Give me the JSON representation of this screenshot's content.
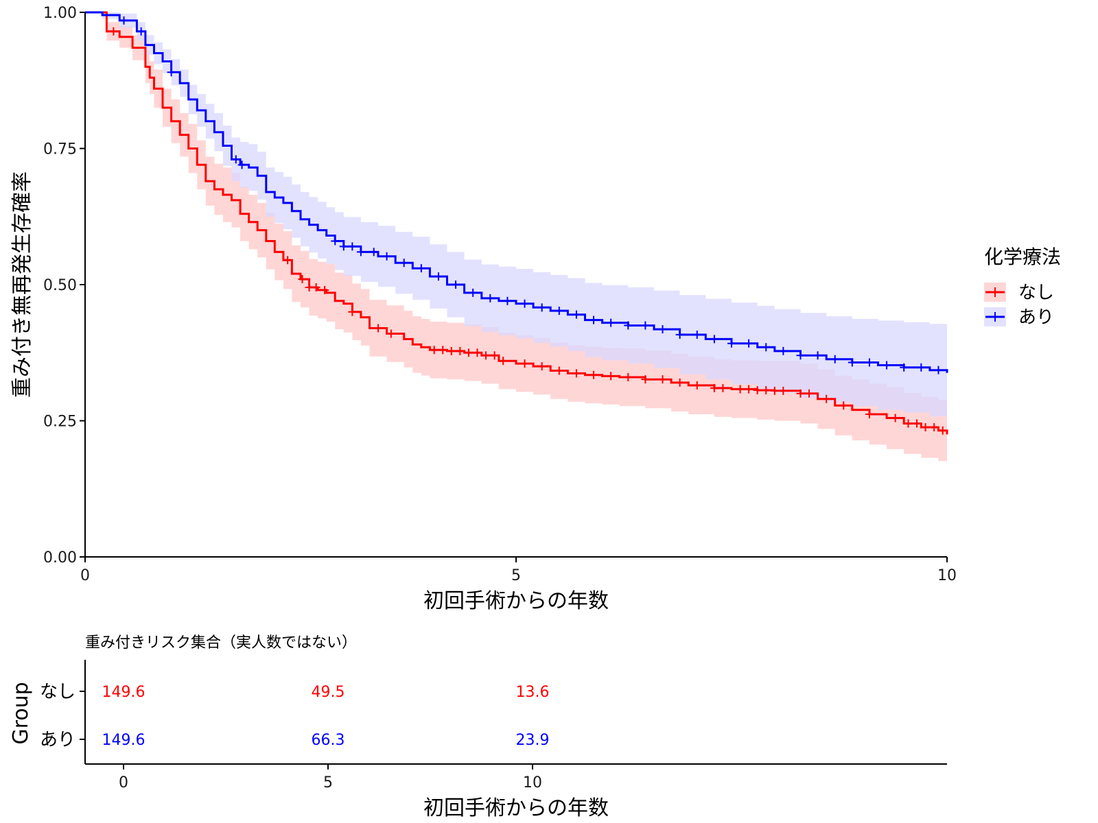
{
  "chart_data": [
    {
      "type": "line",
      "subtype": "kaplan-meier step curves with confidence bands and censor marks",
      "xlabel": "初回手術からの年数",
      "ylabel": "重み付き無再発生存確率",
      "xlim": [
        0,
        10
      ],
      "ylim": [
        0,
        1
      ],
      "x_ticks": [
        "0",
        "5",
        "10"
      ],
      "y_ticks": [
        "0.00",
        "0.25",
        "0.50",
        "0.75",
        "1.00"
      ],
      "grid": false,
      "legend": {
        "title": "化学療法",
        "placement": "right"
      },
      "series": [
        {
          "name": "なし",
          "color": "#ff0000",
          "band_color": "#ffc8c8",
          "x": [
            0,
            0.25,
            0.4,
            0.55,
            0.7,
            0.75,
            0.8,
            0.9,
            1.0,
            1.1,
            1.2,
            1.3,
            1.4,
            1.5,
            1.6,
            1.7,
            1.8,
            1.9,
            2.0,
            2.1,
            2.2,
            2.3,
            2.4,
            2.5,
            2.6,
            2.7,
            2.8,
            2.9,
            3.0,
            3.1,
            3.2,
            3.3,
            3.5,
            3.7,
            3.8,
            3.9,
            4.0,
            4.2,
            4.4,
            4.6,
            4.8,
            5.0,
            5.2,
            5.4,
            5.6,
            5.8,
            6.0,
            6.2,
            6.5,
            6.8,
            7.0,
            7.3,
            7.5,
            7.8,
            8.0,
            8.3,
            8.5,
            8.7,
            8.9,
            9.1,
            9.3,
            9.5,
            9.7,
            9.9,
            10.0
          ],
          "y": [
            1.0,
            0.965,
            0.955,
            0.935,
            0.9,
            0.88,
            0.86,
            0.825,
            0.8,
            0.775,
            0.75,
            0.72,
            0.69,
            0.675,
            0.665,
            0.655,
            0.63,
            0.615,
            0.6,
            0.58,
            0.56,
            0.545,
            0.52,
            0.51,
            0.495,
            0.49,
            0.485,
            0.47,
            0.465,
            0.45,
            0.44,
            0.42,
            0.41,
            0.4,
            0.39,
            0.385,
            0.38,
            0.378,
            0.375,
            0.37,
            0.36,
            0.355,
            0.35,
            0.342,
            0.337,
            0.334,
            0.332,
            0.33,
            0.326,
            0.32,
            0.315,
            0.31,
            0.308,
            0.306,
            0.305,
            0.3,
            0.29,
            0.278,
            0.27,
            0.262,
            0.255,
            0.245,
            0.238,
            0.232,
            0.225
          ],
          "ci_lower": [
            1.0,
            0.948,
            0.935,
            0.912,
            0.87,
            0.85,
            0.825,
            0.79,
            0.76,
            0.735,
            0.705,
            0.675,
            0.645,
            0.628,
            0.615,
            0.605,
            0.58,
            0.565,
            0.55,
            0.528,
            0.508,
            0.492,
            0.468,
            0.458,
            0.443,
            0.438,
            0.432,
            0.418,
            0.412,
            0.398,
            0.388,
            0.368,
            0.358,
            0.348,
            0.338,
            0.333,
            0.328,
            0.326,
            0.323,
            0.318,
            0.308,
            0.303,
            0.298,
            0.29,
            0.285,
            0.282,
            0.28,
            0.277,
            0.273,
            0.267,
            0.262,
            0.257,
            0.255,
            0.252,
            0.25,
            0.245,
            0.235,
            0.223,
            0.214,
            0.206,
            0.198,
            0.189,
            0.182,
            0.176,
            0.172
          ],
          "ci_upper": [
            1.0,
            0.982,
            0.975,
            0.958,
            0.93,
            0.91,
            0.895,
            0.86,
            0.84,
            0.815,
            0.795,
            0.765,
            0.735,
            0.722,
            0.715,
            0.705,
            0.68,
            0.665,
            0.65,
            0.632,
            0.612,
            0.598,
            0.572,
            0.562,
            0.547,
            0.542,
            0.538,
            0.522,
            0.518,
            0.502,
            0.492,
            0.472,
            0.462,
            0.452,
            0.442,
            0.437,
            0.432,
            0.43,
            0.427,
            0.422,
            0.412,
            0.407,
            0.402,
            0.394,
            0.389,
            0.386,
            0.384,
            0.383,
            0.379,
            0.373,
            0.368,
            0.363,
            0.361,
            0.36,
            0.36,
            0.355,
            0.345,
            0.333,
            0.326,
            0.318,
            0.312,
            0.301,
            0.294,
            0.288,
            0.281
          ],
          "censor_x": [
            0.33,
            2.35,
            2.52,
            2.6,
            2.68,
            2.78,
            3.1,
            3.4,
            3.55,
            4.05,
            4.15,
            4.25,
            4.35,
            4.45,
            4.55,
            4.65,
            4.75,
            4.85,
            5.1,
            5.3,
            5.5,
            5.7,
            5.9,
            6.1,
            6.3,
            6.5,
            6.7,
            6.9,
            7.1,
            7.3,
            7.4,
            7.6,
            7.7,
            7.8,
            7.9,
            8.0,
            8.1,
            8.3,
            8.4,
            8.6,
            8.8,
            9.1,
            9.4,
            9.55,
            9.65,
            9.75,
            9.85,
            9.95
          ]
        },
        {
          "name": "あり",
          "color": "#0000ff",
          "band_color": "#d8d8ff",
          "x": [
            0,
            0.2,
            0.4,
            0.6,
            0.7,
            0.8,
            0.9,
            1.0,
            1.1,
            1.2,
            1.3,
            1.4,
            1.5,
            1.6,
            1.7,
            1.8,
            1.9,
            2.0,
            2.1,
            2.2,
            2.3,
            2.4,
            2.5,
            2.6,
            2.7,
            2.8,
            2.9,
            3.0,
            3.2,
            3.4,
            3.6,
            3.8,
            4.0,
            4.2,
            4.4,
            4.6,
            4.8,
            5.0,
            5.2,
            5.4,
            5.6,
            5.8,
            6.0,
            6.3,
            6.6,
            6.9,
            7.2,
            7.5,
            7.8,
            8.0,
            8.3,
            8.6,
            8.9,
            9.2,
            9.5,
            9.8,
            10.0
          ],
          "y": [
            1.0,
            0.995,
            0.985,
            0.965,
            0.94,
            0.925,
            0.91,
            0.89,
            0.87,
            0.84,
            0.82,
            0.8,
            0.78,
            0.755,
            0.73,
            0.72,
            0.715,
            0.7,
            0.67,
            0.66,
            0.65,
            0.635,
            0.62,
            0.61,
            0.6,
            0.59,
            0.58,
            0.57,
            0.56,
            0.552,
            0.54,
            0.53,
            0.515,
            0.5,
            0.485,
            0.475,
            0.47,
            0.465,
            0.458,
            0.452,
            0.445,
            0.435,
            0.43,
            0.425,
            0.418,
            0.408,
            0.4,
            0.392,
            0.385,
            0.378,
            0.37,
            0.363,
            0.357,
            0.352,
            0.348,
            0.343,
            0.338
          ],
          "ci_lower": [
            1.0,
            0.988,
            0.972,
            0.948,
            0.922,
            0.905,
            0.888,
            0.866,
            0.845,
            0.813,
            0.79,
            0.768,
            0.745,
            0.718,
            0.69,
            0.678,
            0.672,
            0.656,
            0.625,
            0.613,
            0.602,
            0.586,
            0.57,
            0.559,
            0.548,
            0.538,
            0.527,
            0.516,
            0.505,
            0.496,
            0.483,
            0.472,
            0.456,
            0.44,
            0.424,
            0.413,
            0.407,
            0.401,
            0.393,
            0.386,
            0.378,
            0.367,
            0.361,
            0.355,
            0.347,
            0.335,
            0.326,
            0.317,
            0.309,
            0.301,
            0.292,
            0.284,
            0.277,
            0.27,
            0.265,
            0.258,
            0.252
          ],
          "ci_upper": [
            1.0,
            1.0,
            0.998,
            0.982,
            0.958,
            0.945,
            0.932,
            0.914,
            0.895,
            0.867,
            0.85,
            0.832,
            0.815,
            0.792,
            0.77,
            0.762,
            0.758,
            0.744,
            0.715,
            0.707,
            0.698,
            0.684,
            0.67,
            0.661,
            0.652,
            0.642,
            0.633,
            0.624,
            0.615,
            0.608,
            0.597,
            0.588,
            0.574,
            0.56,
            0.546,
            0.537,
            0.533,
            0.529,
            0.523,
            0.518,
            0.512,
            0.503,
            0.499,
            0.495,
            0.489,
            0.481,
            0.474,
            0.467,
            0.461,
            0.455,
            0.448,
            0.442,
            0.437,
            0.434,
            0.431,
            0.428,
            0.424
          ],
          "censor_x": [
            0.45,
            0.65,
            1.0,
            1.75,
            1.82,
            2.9,
            3.0,
            3.1,
            3.2,
            3.35,
            3.5,
            3.7,
            3.9,
            4.1,
            4.3,
            4.5,
            4.7,
            4.9,
            5.1,
            5.3,
            5.5,
            5.7,
            5.9,
            6.1,
            6.3,
            6.5,
            6.7,
            6.9,
            7.1,
            7.3,
            7.5,
            7.7,
            7.9,
            8.1,
            8.3,
            8.5,
            8.7,
            8.9,
            9.1,
            9.3,
            9.5,
            9.7,
            9.9
          ]
        }
      ]
    },
    {
      "type": "table",
      "title": "重み付きリスク集合（実人数ではない）",
      "xlabel": "初回手術からの年数",
      "ylabel": "Group",
      "x_ticks": [
        "0",
        "5",
        "10"
      ],
      "groups": [
        "なし",
        "あり"
      ],
      "columns": [
        0,
        5,
        10
      ],
      "rows": [
        {
          "group": "なし",
          "color": "#ff0000",
          "values": [
            "149.6",
            "49.5",
            "13.6"
          ]
        },
        {
          "group": "あり",
          "color": "#0000ff",
          "values": [
            "149.6",
            "66.3",
            "23.9"
          ]
        }
      ]
    }
  ]
}
